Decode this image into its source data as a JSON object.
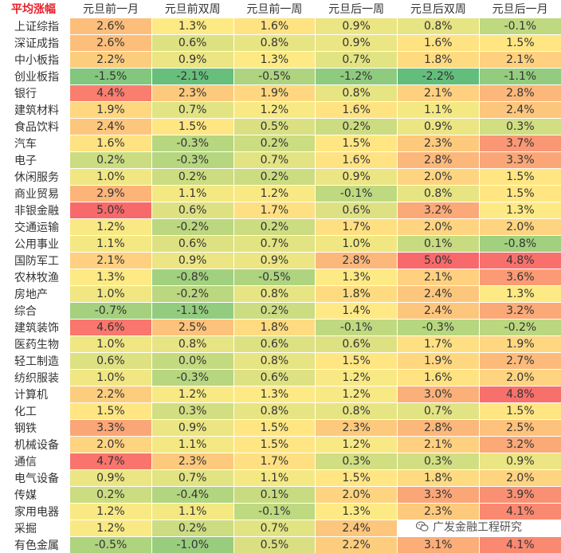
{
  "table": {
    "corner_label": "平均涨幅",
    "columns": [
      "元旦前一月",
      "元旦前双周",
      "元旦前一周",
      "元旦后一周",
      "元旦后双周",
      "元旦后一月"
    ],
    "rows": [
      {
        "name": "上证综指",
        "values": [
          "2.6%",
          "1.3%",
          "1.6%",
          "0.9%",
          "0.8%",
          "-0.1%"
        ]
      },
      {
        "name": "深证成指",
        "values": [
          "2.6%",
          "0.6%",
          "0.8%",
          "0.9%",
          "1.6%",
          "1.5%"
        ]
      },
      {
        "name": "中小板指",
        "values": [
          "2.2%",
          "0.9%",
          "1.3%",
          "0.7%",
          "1.8%",
          "2.1%"
        ]
      },
      {
        "name": "创业板指",
        "values": [
          "-1.5%",
          "-2.1%",
          "-0.5%",
          "-1.2%",
          "-2.2%",
          "-1.1%"
        ]
      },
      {
        "name": "银行",
        "values": [
          "4.4%",
          "2.3%",
          "1.9%",
          "0.8%",
          "2.1%",
          "2.8%"
        ]
      },
      {
        "name": "建筑材料",
        "values": [
          "1.9%",
          "0.7%",
          "1.2%",
          "1.6%",
          "1.1%",
          "2.4%"
        ]
      },
      {
        "name": "食品饮料",
        "values": [
          "2.4%",
          "1.5%",
          "0.5%",
          "0.2%",
          "0.9%",
          "0.3%"
        ]
      },
      {
        "name": "汽车",
        "values": [
          "1.6%",
          "-0.3%",
          "0.2%",
          "1.5%",
          "2.3%",
          "3.7%"
        ]
      },
      {
        "name": "电子",
        "values": [
          "0.2%",
          "-0.3%",
          "0.7%",
          "1.6%",
          "2.8%",
          "3.3%"
        ]
      },
      {
        "name": "休闲服务",
        "values": [
          "1.0%",
          "0.2%",
          "0.2%",
          "0.9%",
          "2.0%",
          "1.5%"
        ]
      },
      {
        "name": "商业贸易",
        "values": [
          "2.9%",
          "1.1%",
          "1.2%",
          "-0.1%",
          "0.8%",
          "1.5%"
        ]
      },
      {
        "name": "非银金融",
        "values": [
          "5.0%",
          "0.6%",
          "1.7%",
          "0.6%",
          "3.2%",
          "1.3%"
        ]
      },
      {
        "name": "交通运输",
        "values": [
          "1.2%",
          "-0.2%",
          "0.2%",
          "1.7%",
          "2.0%",
          "2.0%"
        ]
      },
      {
        "name": "公用事业",
        "values": [
          "1.1%",
          "0.6%",
          "0.7%",
          "1.0%",
          "0.1%",
          "-0.8%"
        ]
      },
      {
        "name": "国防军工",
        "values": [
          "2.1%",
          "0.9%",
          "0.9%",
          "2.8%",
          "5.0%",
          "4.8%"
        ]
      },
      {
        "name": "农林牧渔",
        "values": [
          "1.3%",
          "-0.8%",
          "-0.5%",
          "1.3%",
          "2.1%",
          "3.6%"
        ]
      },
      {
        "name": "房地产",
        "values": [
          "1.0%",
          "-0.2%",
          "0.8%",
          "1.8%",
          "2.4%",
          "1.3%"
        ]
      },
      {
        "name": "综合",
        "values": [
          "-0.7%",
          "-1.1%",
          "0.2%",
          "1.4%",
          "2.4%",
          "3.2%"
        ]
      },
      {
        "name": "建筑装饰",
        "values": [
          "4.6%",
          "2.5%",
          "1.8%",
          "-0.1%",
          "-0.3%",
          "-0.2%"
        ]
      },
      {
        "name": "医药生物",
        "values": [
          "1.0%",
          "0.8%",
          "0.6%",
          "0.6%",
          "1.7%",
          "1.9%"
        ]
      },
      {
        "name": "轻工制造",
        "values": [
          "0.6%",
          "0.0%",
          "0.8%",
          "1.5%",
          "1.9%",
          "2.7%"
        ]
      },
      {
        "name": "纺织服装",
        "values": [
          "1.0%",
          "-0.3%",
          "0.6%",
          "1.2%",
          "1.6%",
          "2.0%"
        ]
      },
      {
        "name": "计算机",
        "values": [
          "2.2%",
          "1.2%",
          "1.3%",
          "1.2%",
          "3.0%",
          "4.8%"
        ]
      },
      {
        "name": "化工",
        "values": [
          "1.5%",
          "0.3%",
          "0.8%",
          "0.8%",
          "0.7%",
          "1.5%"
        ]
      },
      {
        "name": "钢铁",
        "values": [
          "3.3%",
          "0.9%",
          "1.5%",
          "2.3%",
          "2.8%",
          "2.5%"
        ]
      },
      {
        "name": "机械设备",
        "values": [
          "2.0%",
          "1.1%",
          "1.5%",
          "1.2%",
          "2.1%",
          "3.2%"
        ]
      },
      {
        "name": "通信",
        "values": [
          "4.7%",
          "2.3%",
          "1.7%",
          "0.3%",
          "0.3%",
          "0.9%"
        ]
      },
      {
        "name": "电气设备",
        "values": [
          "0.9%",
          "0.7%",
          "1.1%",
          "1.5%",
          "1.8%",
          "2.0%"
        ]
      },
      {
        "name": "传媒",
        "values": [
          "0.2%",
          "-0.4%",
          "0.1%",
          "2.0%",
          "3.3%",
          "3.9%"
        ]
      },
      {
        "name": "家用电器",
        "values": [
          "1.2%",
          "1.1%",
          "-0.1%",
          "1.3%",
          "2.3%",
          "4.1%"
        ]
      },
      {
        "name": "采掘",
        "values": [
          "1.2%",
          "0.2%",
          "0.7%",
          "2.4%",
          "",
          ""
        ]
      },
      {
        "name": "有色金属",
        "values": [
          "-0.5%",
          "-1.0%",
          "0.5%",
          "2.2%",
          "3.1%",
          "4.1%"
        ]
      }
    ]
  },
  "watermark": {
    "text": "广发金融工程研究",
    "icon": "wechat-icon"
  },
  "colors": {
    "low": "#63be7b",
    "mid": "#ffeb84",
    "high": "#f8696b",
    "header_accent": "#e8212b"
  }
}
